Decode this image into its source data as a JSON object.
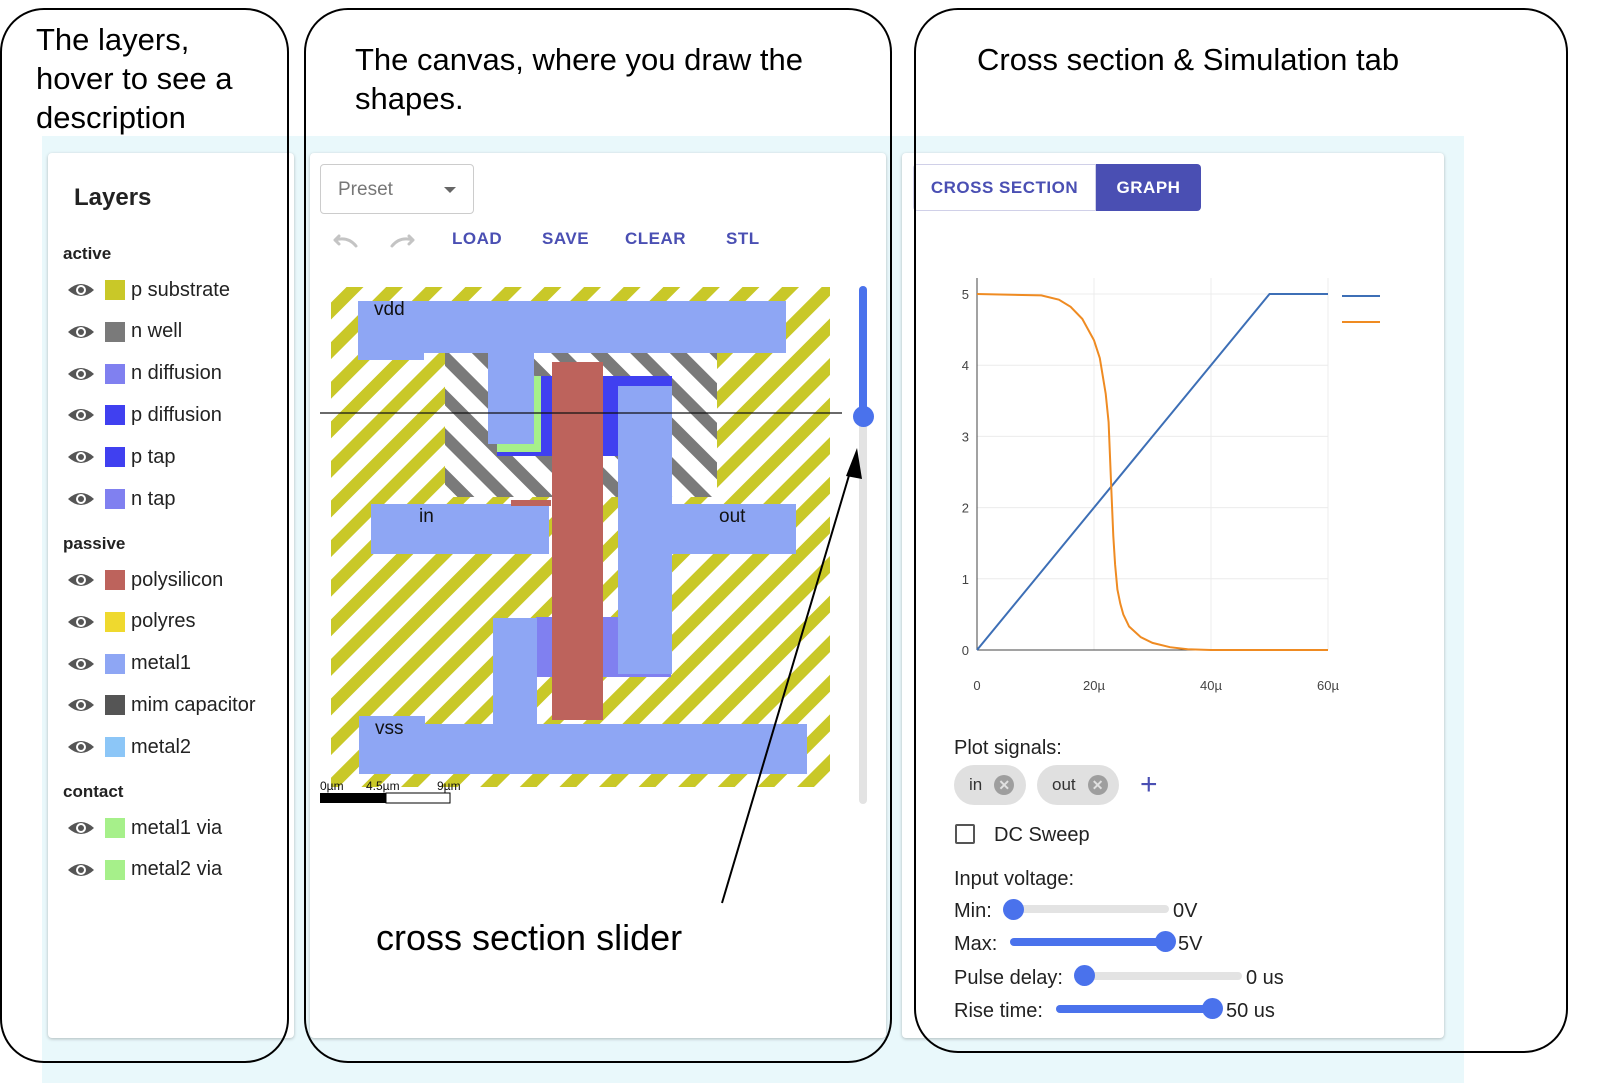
{
  "annotations": {
    "layers_line1": "The layers,",
    "layers_line2": "hover to see a",
    "layers_line3": "description",
    "canvas_line1": "The canvas, where you draw the",
    "canvas_line2": "shapes.",
    "sim": "Cross section & Simulation tab",
    "slider": "cross section slider"
  },
  "layers": {
    "title": "Layers",
    "groups": [
      {
        "name": "active",
        "items": [
          {
            "label": "p substrate",
            "color": "#c9c828"
          },
          {
            "label": "n well",
            "color": "#7a7a7a"
          },
          {
            "label": "n diffusion",
            "color": "#8080f0"
          },
          {
            "label": "p diffusion",
            "color": "#4040f0"
          },
          {
            "label": "p tap",
            "color": "#4040f0"
          },
          {
            "label": "n tap",
            "color": "#8080f0"
          }
        ]
      },
      {
        "name": "passive",
        "items": [
          {
            "label": "polysilicon",
            "color": "#bd635c"
          },
          {
            "label": "polyres",
            "color": "#efd92e"
          },
          {
            "label": "metal1",
            "color": "#8ea6f4"
          },
          {
            "label": "mim capacitor",
            "color": "#555555"
          },
          {
            "label": "metal2",
            "color": "#8cc6f7"
          }
        ]
      },
      {
        "name": "contact",
        "items": [
          {
            "label": "metal1 via",
            "color": "#a6f08a"
          },
          {
            "label": "metal2 via",
            "color": "#a6f08a"
          }
        ]
      }
    ]
  },
  "toolbar": {
    "preset": "Preset",
    "load": "LOAD",
    "save": "SAVE",
    "clear": "CLEAR",
    "stl": "STL"
  },
  "canvas": {
    "labels": {
      "vdd": "vdd",
      "in": "in",
      "out": "out",
      "vss": "vss"
    },
    "scale": [
      "0µm",
      "4.5µm",
      "9µm"
    ],
    "cross_section_position": 0.75
  },
  "tabs": {
    "cross_section": "CROSS SECTION",
    "graph": "GRAPH",
    "active": "GRAPH"
  },
  "chart_data": {
    "type": "line",
    "title": "",
    "xlabel": "",
    "ylabel": "",
    "xlim": [
      0,
      60
    ],
    "ylim": [
      0,
      5.2
    ],
    "x_ticks": [
      "0",
      "20µ",
      "40µ",
      "60µ"
    ],
    "x_tick_values": [
      0,
      20,
      40,
      60
    ],
    "y_ticks": [
      "0",
      "1",
      "2",
      "3",
      "4",
      "5"
    ],
    "y_tick_values": [
      0,
      1,
      2,
      3,
      4,
      5
    ],
    "legend_position": "top-right",
    "series": [
      {
        "name": "in",
        "color": "#3d6fb6",
        "x": [
          0,
          50,
          60
        ],
        "y": [
          0,
          5,
          5
        ]
      },
      {
        "name": "out",
        "color": "#ef8b22",
        "x": [
          0,
          11,
          14,
          16,
          18,
          20,
          21,
          22,
          22.5,
          23,
          23.3,
          23.6,
          24,
          24.5,
          25,
          26,
          28,
          30,
          33,
          36,
          38,
          40,
          60
        ],
        "y": [
          5,
          4.98,
          4.92,
          4.82,
          4.65,
          4.35,
          4.1,
          3.6,
          3.2,
          2.2,
          1.6,
          1.2,
          0.85,
          0.65,
          0.5,
          0.33,
          0.18,
          0.1,
          0.04,
          0.01,
          0.005,
          0,
          0
        ]
      }
    ]
  },
  "sim": {
    "plot_signals_label": "Plot signals:",
    "signals": [
      "in",
      "out"
    ],
    "dc_sweep_label": "DC Sweep",
    "dc_sweep_checked": false,
    "input_voltage_label": "Input voltage:",
    "min": {
      "label": "Min:",
      "value_text": "0V",
      "fraction": 0.0
    },
    "max": {
      "label": "Max:",
      "value_text": "5V",
      "fraction": 1.0
    },
    "pulse_delay": {
      "label": "Pulse delay:",
      "value_text": "0 us",
      "fraction": 0.0
    },
    "rise_time": {
      "label": "Rise time:",
      "value_text": "50 us",
      "fraction": 1.0
    }
  }
}
